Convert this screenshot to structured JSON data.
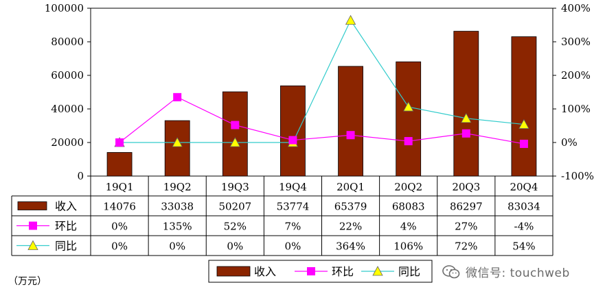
{
  "chart_data": {
    "type": "bar",
    "categories": [
      "19Q1",
      "19Q2",
      "19Q3",
      "19Q4",
      "20Q1",
      "20Q2",
      "20Q3",
      "20Q4"
    ],
    "series": [
      {
        "name": "收入",
        "type": "bar",
        "axis": "left",
        "color": "#8B2500",
        "values": [
          14076,
          33038,
          50207,
          53774,
          65379,
          68083,
          86297,
          83034
        ],
        "labels": [
          "14076",
          "33038",
          "50207",
          "53774",
          "65379",
          "68083",
          "86297",
          "83034"
        ]
      },
      {
        "name": "环比",
        "type": "line",
        "axis": "right",
        "color": "#FF00FF",
        "marker": "square",
        "values": [
          0,
          135,
          52,
          7,
          22,
          4,
          27,
          -4
        ],
        "labels": [
          "0%",
          "135%",
          "52%",
          "7%",
          "22%",
          "4%",
          "27%",
          "-4%"
        ]
      },
      {
        "name": "同比",
        "type": "line",
        "axis": "right",
        "color": "#33CCCC",
        "marker": "triangle",
        "values": [
          0,
          0,
          0,
          0,
          364,
          106,
          72,
          54
        ],
        "labels": [
          "0%",
          "0%",
          "0%",
          "0%",
          "364%",
          "106%",
          "72%",
          "54%"
        ]
      }
    ],
    "left_axis": {
      "ylim": [
        0,
        100000
      ],
      "ticks": [
        0,
        20000,
        40000,
        60000,
        80000,
        100000
      ],
      "tick_labels": [
        "0",
        "20000",
        "40000",
        "60000",
        "80000",
        "100000"
      ]
    },
    "right_axis": {
      "ylim": [
        -100,
        400
      ],
      "ticks": [
        -100,
        0,
        100,
        200,
        300,
        400
      ],
      "tick_labels": [
        "-100%",
        "0%",
        "100%",
        "200%",
        "300%",
        "400%"
      ]
    },
    "unit_label": "（万元）",
    "legend_position": "bottom-center",
    "data_table": true
  },
  "watermark": {
    "text": "微信号: touchweb",
    "icon": "wechat-icon"
  }
}
